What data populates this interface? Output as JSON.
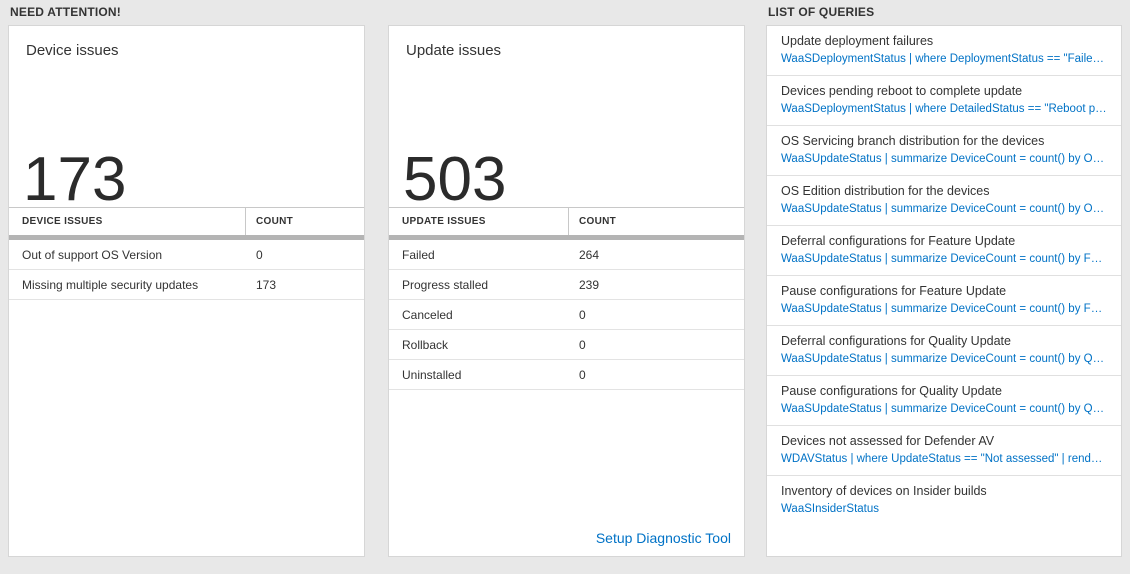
{
  "need_attention": {
    "title": "NEED ATTENTION!",
    "device_card": {
      "title": "Device issues",
      "count": "173",
      "table": {
        "header_label": "DEVICE ISSUES",
        "header_count": "COUNT",
        "rows": [
          {
            "label": "Out of support OS Version",
            "count": "0"
          },
          {
            "label": "Missing multiple security updates",
            "count": "173"
          }
        ]
      }
    },
    "update_card": {
      "title": "Update issues",
      "count": "503",
      "table": {
        "header_label": "UPDATE ISSUES",
        "header_count": "COUNT",
        "rows": [
          {
            "label": "Failed",
            "count": "264"
          },
          {
            "label": "Progress stalled",
            "count": "239"
          },
          {
            "label": "Canceled",
            "count": "0"
          },
          {
            "label": "Rollback",
            "count": "0"
          },
          {
            "label": "Uninstalled",
            "count": "0"
          }
        ]
      },
      "footer_link": "Setup Diagnostic Tool"
    }
  },
  "queries": {
    "title": "LIST OF QUERIES",
    "items": [
      {
        "title": "Update deployment failures",
        "query": "WaaSDeploymentStatus | where DeploymentStatus == \"Failed\" |…"
      },
      {
        "title": "Devices pending reboot to complete update",
        "query": "WaaSDeploymentStatus | where DetailedStatus == \"Reboot pend…"
      },
      {
        "title": "OS Servicing branch distribution for the devices",
        "query": "WaaSUpdateStatus | summarize DeviceCount = count() by OSSer…"
      },
      {
        "title": "OS Edition distribution for the devices",
        "query": "WaaSUpdateStatus | summarize DeviceCount = count() by OSEdit…"
      },
      {
        "title": "Deferral configurations for Feature Update",
        "query": "WaaSUpdateStatus | summarize DeviceCount = count() by Featur…"
      },
      {
        "title": "Pause configurations for Feature Update",
        "query": "WaaSUpdateStatus | summarize DeviceCount = count() by Featur…"
      },
      {
        "title": "Deferral configurations for Quality Update",
        "query": "WaaSUpdateStatus | summarize DeviceCount = count() by Qualit…"
      },
      {
        "title": "Pause configurations for Quality Update",
        "query": "WaaSUpdateStatus | summarize DeviceCount = count() by Qualit…"
      },
      {
        "title": "Devices not assessed for Defender AV",
        "query": "WDAVStatus | where UpdateStatus == \"Not assessed\" | render ta…"
      },
      {
        "title": "Inventory of devices on Insider builds",
        "query": "WaaSInsiderStatus"
      }
    ]
  },
  "colors": {
    "accent_blue": "#0072c6",
    "background": "#e8e8e8",
    "card_border": "#d6d6d6"
  }
}
